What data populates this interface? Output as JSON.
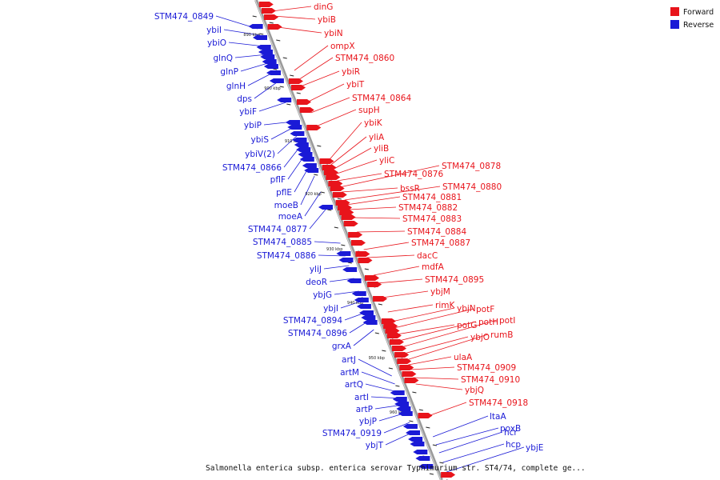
{
  "title": "Salmonella enterica subsp. enterica serovar Typhimurium str. ST4/74, complete ge...",
  "legend": {
    "items": [
      {
        "label": "Forward",
        "color": "#e8141b"
      },
      {
        "label": "Reverse",
        "color": "#1a1ad6"
      }
    ]
  },
  "axis": {
    "line_color": "#8a8a8a",
    "ticks": [
      "890 kbp",
      "900 kbp",
      "910 kbp",
      "920 kbp",
      "930 kbp",
      "940 kbp",
      "950 kbp",
      "960 kbp"
    ]
  },
  "forward_labels": [
    "dinG",
    "ybiB",
    "ybiN",
    "ompX",
    "STM474_0860",
    "ybiR",
    "ybiT",
    "STM474_0864",
    "supH",
    "ybiK",
    "yliA",
    "yliB",
    "yliC",
    "STM474_0876",
    "STM474_0878",
    "bssR",
    "STM474_0880",
    "STM474_0881",
    "STM474_0882",
    "STM474_0883",
    "STM474_0884",
    "STM474_0887",
    "dacC",
    "mdfA",
    "STM474_0895",
    "ybjM",
    "rimK",
    "ybjN",
    "potF",
    "potG",
    "potH",
    "potI",
    "ybjO",
    "rumB",
    "ulaA",
    "STM474_0909",
    "STM474_0910",
    "ybjQ",
    "STM474_0918"
  ],
  "reverse_labels": [
    "STM474_0849",
    "ybiI",
    "ybiO",
    "glnQ",
    "glnP",
    "glnH",
    "dps",
    "ybiF",
    "ybiP",
    "ybiS",
    "ybiV(2)",
    "STM474_0866",
    "pflF",
    "pflE",
    "moeB",
    "moeA",
    "STM474_0877",
    "STM474_0885",
    "STM474_0886",
    "yliJ",
    "deoR",
    "ybjG",
    "ybjI",
    "STM474_0894",
    "STM474_0896",
    "grxA",
    "artJ",
    "artM",
    "artQ",
    "artI",
    "artP",
    "ybjP",
    "STM474_0919",
    "ybjT",
    "ltaA",
    "poxB",
    "hcr",
    "hcp",
    "ybjE"
  ]
}
